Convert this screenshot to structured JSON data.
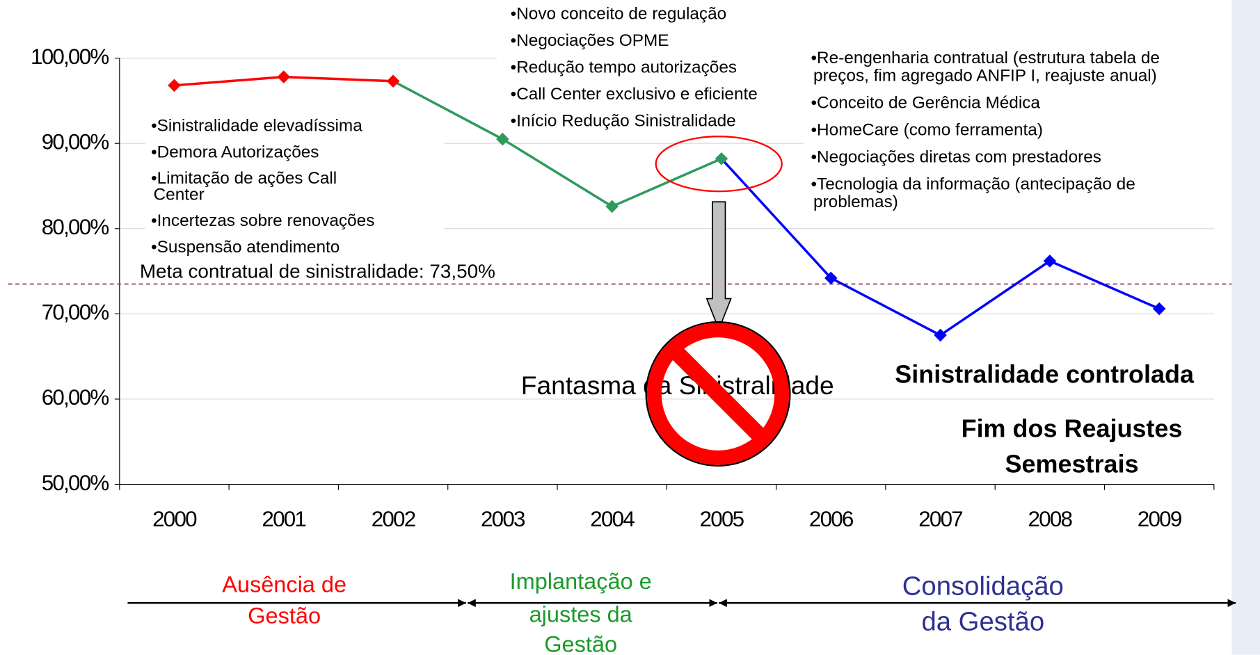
{
  "chart_data": {
    "type": "line",
    "categories": [
      "2000",
      "2001",
      "2002",
      "2003",
      "2004",
      "2005",
      "2006",
      "2007",
      "2008",
      "2009"
    ],
    "values": [
      96.8,
      97.8,
      97.3,
      90.5,
      82.6,
      88.2,
      74.2,
      67.5,
      76.2,
      70.6
    ],
    "point_colors": [
      "#ff0000",
      "#ff0000",
      "#ff0000",
      "#2e9a5c",
      "#2e9a5c",
      "#2e9a5c",
      "#0000ff",
      "#0000ff",
      "#0000ff",
      "#0000ff"
    ],
    "ylim": [
      50,
      100
    ],
    "yticks": [
      {
        "value": 50,
        "label": "50,00%"
      },
      {
        "value": 60,
        "label": "60,00%"
      },
      {
        "value": 70,
        "label": "70,00%"
      },
      {
        "value": 80,
        "label": "80,00%"
      },
      {
        "value": 90,
        "label": "90,00%"
      },
      {
        "value": 100,
        "label": "100,00%"
      }
    ],
    "grid": true,
    "reference_line": {
      "value": 73.5,
      "label": "Meta contratual de sinistralidade: 73,50%",
      "color": "#993366"
    },
    "annotations": {
      "left": [
        [
          "•Sinistralidade elevadíssima"
        ],
        [
          "•Demora Autorizações"
        ],
        [
          "•Limitação de ações Call",
          "Center"
        ],
        [
          "•Incertezas sobre renovações"
        ],
        [
          "•Suspensão atendimento"
        ]
      ],
      "middle": [
        [
          "•Novo conceito de regulação"
        ],
        [
          "•Negociações OPME"
        ],
        [
          "•Redução tempo autorizações"
        ],
        [
          "•Call Center exclusivo e eficiente"
        ],
        [
          "•Início Redução Sinistralidade"
        ]
      ],
      "right": [
        [
          "•Re-engenharia contratual (estrutura tabela de",
          "preços, fim agregado ANFIP I, reajuste anual)"
        ],
        [
          "•Conceito de Gerência Médica"
        ],
        [
          "•HomeCare (como ferramenta)"
        ],
        [
          "•Negociações diretas com prestadores"
        ],
        [
          "•Tecnologia da informação (antecipação de",
          "problemas)"
        ]
      ],
      "ghost": "Fantasma da Sinistralidade",
      "controlled": "Sinistralidade controlada",
      "end_adjust": [
        "Fim dos Reajustes",
        "Semestrais"
      ]
    },
    "phases": [
      {
        "lines": [
          "Ausência de",
          "Gestão"
        ],
        "color": "#ff0000"
      },
      {
        "lines": [
          "Implantação e",
          "ajustes da",
          "Gestão"
        ],
        "color": "#1a9a2a"
      },
      {
        "lines": [
          "Consolidação",
          "da Gestão"
        ],
        "color": "#2e3192"
      }
    ]
  }
}
